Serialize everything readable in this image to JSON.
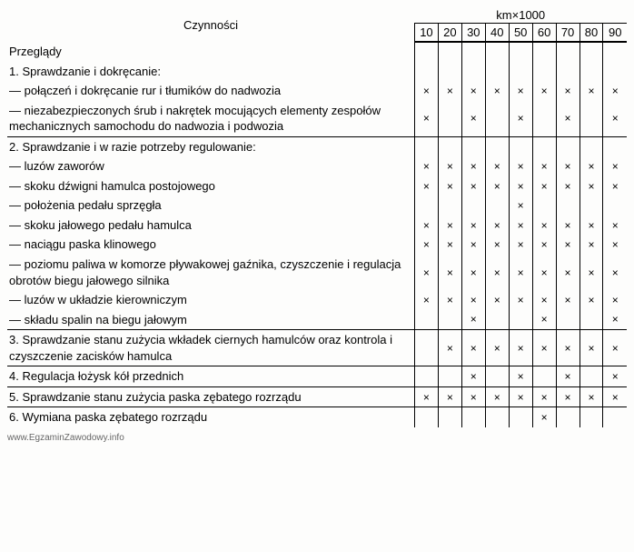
{
  "header": {
    "label": "Czynności",
    "unit": "km×1000",
    "columns": [
      "10",
      "20",
      "30",
      "40",
      "50",
      "60",
      "70",
      "80",
      "90"
    ]
  },
  "sections": [
    {
      "id": 0,
      "heading": "Przeglądy",
      "rows": [
        {
          "label": "1. Sprawdzanie i dokręcanie:",
          "marks": [
            0,
            0,
            0,
            0,
            0,
            0,
            0,
            0,
            0
          ]
        },
        {
          "label": "— połączeń i dokręcanie rur i tłumików do nadwozia",
          "marks": [
            1,
            1,
            1,
            1,
            1,
            1,
            1,
            1,
            1
          ]
        },
        {
          "label": "— niezabezpieczonych śrub i nakrętek mocujących elementy zespołów mechanicznych samochodu do nadwozia i podwozia",
          "marks": [
            1,
            0,
            1,
            0,
            1,
            0,
            1,
            0,
            1
          ]
        }
      ]
    },
    {
      "id": 1,
      "rows": [
        {
          "label": "2. Sprawdzanie i w razie potrzeby regulowanie:",
          "marks": [
            0,
            0,
            0,
            0,
            0,
            0,
            0,
            0,
            0
          ]
        },
        {
          "label": "— luzów zaworów",
          "marks": [
            1,
            1,
            1,
            1,
            1,
            1,
            1,
            1,
            1
          ]
        },
        {
          "label": "— skoku dźwigni hamulca postojowego",
          "marks": [
            1,
            1,
            1,
            1,
            1,
            1,
            1,
            1,
            1
          ]
        },
        {
          "label": "— położenia pedału sprzęgła",
          "marks": [
            0,
            0,
            0,
            0,
            1,
            0,
            0,
            0,
            0
          ]
        },
        {
          "label": "— skoku jałowego pedału hamulca",
          "marks": [
            1,
            1,
            1,
            1,
            1,
            1,
            1,
            1,
            1
          ]
        },
        {
          "label": "— naciągu paska klinowego",
          "marks": [
            1,
            1,
            1,
            1,
            1,
            1,
            1,
            1,
            1
          ]
        },
        {
          "label": "— poziomu paliwa w komorze pływakowej gaźnika, czyszczenie i regulacja obrotów biegu jałowego silnika",
          "marks": [
            1,
            1,
            1,
            1,
            1,
            1,
            1,
            1,
            1
          ]
        },
        {
          "label": "— luzów w układzie kierowniczym",
          "marks": [
            1,
            1,
            1,
            1,
            1,
            1,
            1,
            1,
            1
          ]
        },
        {
          "label": "— składu spalin na biegu jałowym",
          "marks": [
            0,
            0,
            1,
            0,
            0,
            1,
            0,
            0,
            1
          ]
        }
      ]
    },
    {
      "id": 2,
      "rows": [
        {
          "label": "3. Sprawdzanie stanu zużycia wkładek ciernych hamulców oraz kontrola i czyszczenie zacisków hamulca",
          "marks": [
            0,
            1,
            1,
            1,
            1,
            1,
            1,
            1,
            1
          ]
        }
      ]
    },
    {
      "id": 3,
      "rows": [
        {
          "label": "4. Regulacja łożysk kół przednich",
          "marks": [
            0,
            0,
            1,
            0,
            1,
            0,
            1,
            0,
            1
          ]
        }
      ]
    },
    {
      "id": 4,
      "rows": [
        {
          "label": "5. Sprawdzanie stanu zużycia paska zębatego rozrządu",
          "marks": [
            1,
            1,
            1,
            1,
            1,
            1,
            1,
            1,
            1
          ]
        }
      ]
    },
    {
      "id": 5,
      "rows": [
        {
          "label": "6. Wymiana paska zębatego rozrządu",
          "marks": [
            0,
            0,
            0,
            0,
            0,
            1,
            0,
            0,
            0
          ]
        }
      ]
    }
  ],
  "footer": "www.EgzaminZawodowy.info",
  "style": {
    "mark_symbol": "×",
    "background": "#fdfdfc",
    "text_color": "#000000",
    "border_color": "#000000",
    "font_size": 13
  }
}
